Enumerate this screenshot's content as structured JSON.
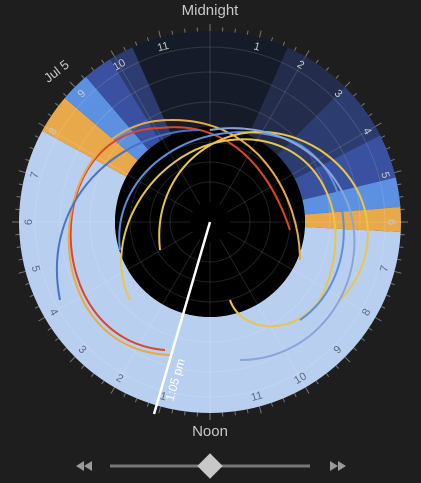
{
  "header": {
    "top_label": "Midnight",
    "bottom_label": "Noon",
    "date": "Jul 5",
    "time": "1:05 pm"
  },
  "dial": {
    "right_hours": [
      "1",
      "2",
      "3",
      "4",
      "5",
      "6",
      "7",
      "8",
      "9",
      "10",
      "11"
    ],
    "left_hours": [
      "1",
      "2",
      "3",
      "4",
      "5",
      "6",
      "7",
      "8",
      "9",
      "10",
      "11"
    ]
  }
}
